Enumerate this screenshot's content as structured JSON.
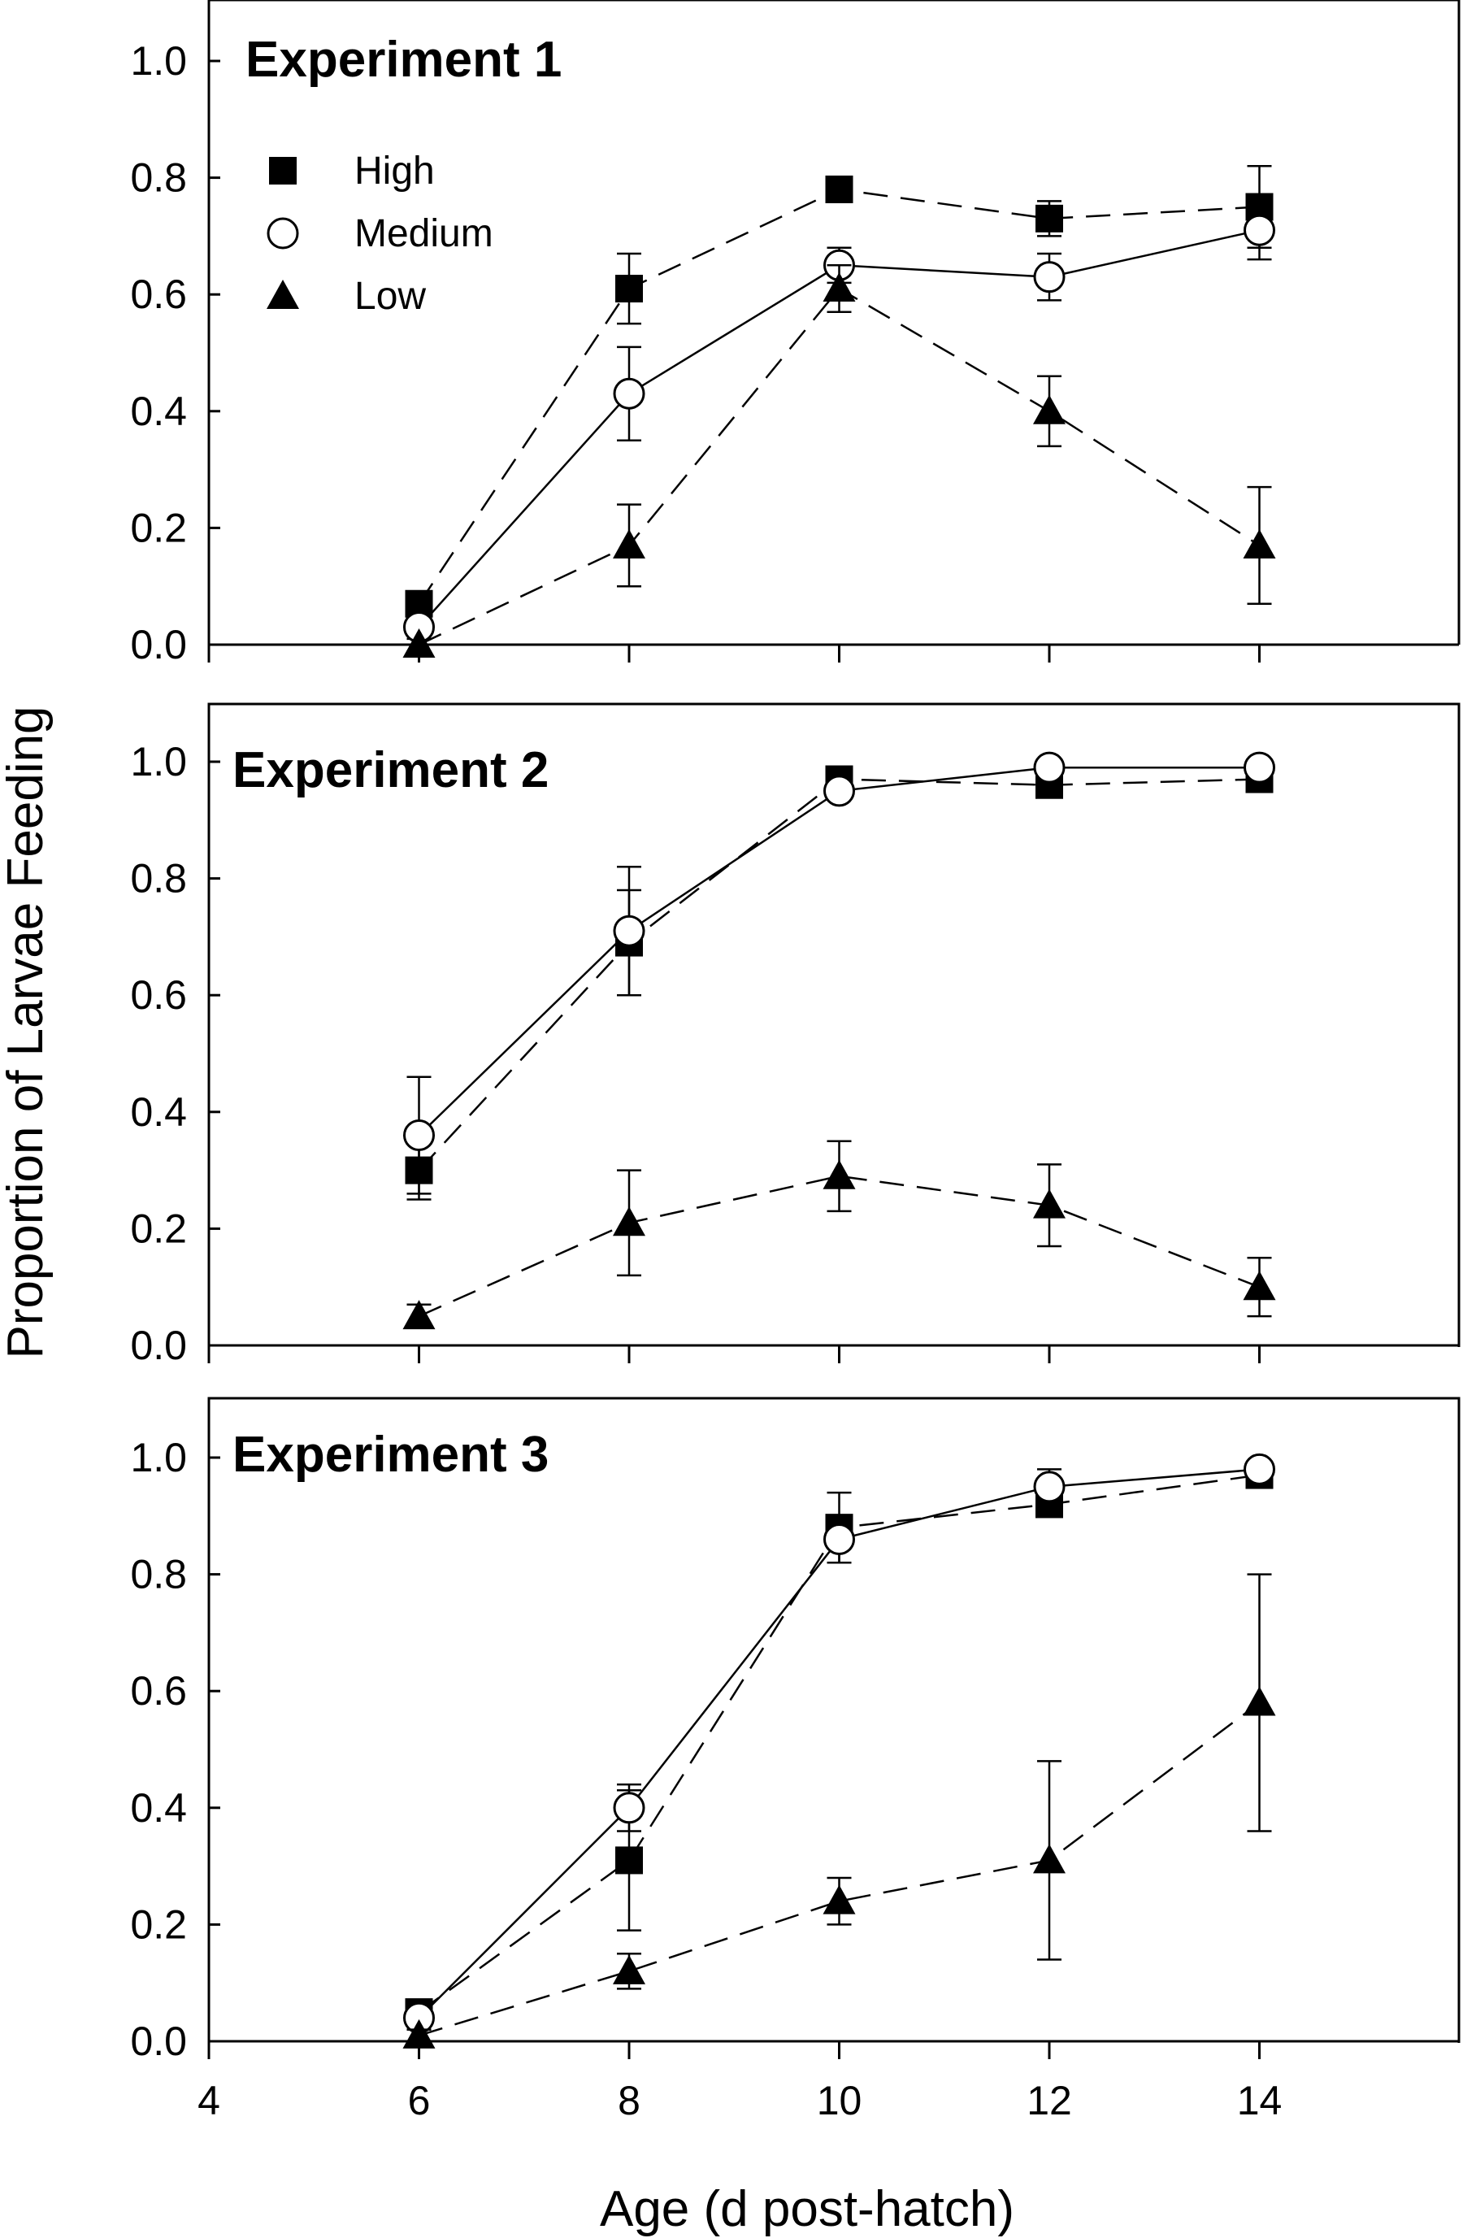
{
  "figure": {
    "ylabel": "Proportion of Larvae Feeding",
    "xlabel": "Age (d post-hatch)"
  },
  "legend": [
    {
      "name": "High",
      "marker": "square-filled"
    },
    {
      "name": "Medium",
      "marker": "circle-open"
    },
    {
      "name": "Low",
      "marker": "triangle-filled"
    }
  ],
  "chart_data": [
    {
      "type": "line",
      "title": "Experiment 1",
      "x": [
        6,
        8,
        10,
        12,
        14
      ],
      "xlim": [
        4,
        16
      ],
      "ylim": [
        0,
        1.1
      ],
      "yticks": [
        "0.0",
        "0.2",
        "0.4",
        "0.6",
        "0.8",
        "1.0"
      ],
      "xticks": [],
      "legend": "top-left",
      "grid": false,
      "series": [
        {
          "name": "High",
          "marker": "square-filled",
          "line": "dashed",
          "values": [
            0.07,
            0.61,
            0.78,
            0.73,
            0.75
          ],
          "errors": [
            0.02,
            0.06,
            0.01,
            0.03,
            0.07
          ]
        },
        {
          "name": "Medium",
          "marker": "circle-open",
          "line": "solid",
          "values": [
            0.03,
            0.43,
            0.65,
            0.63,
            0.71
          ],
          "errors": [
            0.02,
            0.08,
            0.03,
            0.04,
            0.05
          ]
        },
        {
          "name": "Low",
          "marker": "triangle-filled",
          "line": "dashed",
          "values": [
            0.0,
            0.17,
            0.61,
            0.4,
            0.17
          ],
          "errors": [
            0.0,
            0.07,
            0.04,
            0.06,
            0.1
          ]
        }
      ]
    },
    {
      "type": "line",
      "title": "Experiment 2",
      "x": [
        6,
        8,
        10,
        12,
        14
      ],
      "xlim": [
        4,
        16
      ],
      "ylim": [
        0,
        1.1
      ],
      "yticks": [
        "0.0",
        "0.2",
        "0.4",
        "0.6",
        "0.8",
        "1.0"
      ],
      "xticks": [],
      "grid": false,
      "series": [
        {
          "name": "High",
          "marker": "square-filled",
          "line": "dashed",
          "values": [
            0.3,
            0.69,
            0.97,
            0.96,
            0.97
          ],
          "errors": [
            0.05,
            0.09,
            0.01,
            0.01,
            0.01
          ]
        },
        {
          "name": "Medium",
          "marker": "circle-open",
          "line": "solid",
          "values": [
            0.36,
            0.71,
            0.95,
            0.99,
            0.99
          ],
          "errors": [
            0.1,
            0.11,
            0.01,
            0.01,
            0.01
          ]
        },
        {
          "name": "Low",
          "marker": "triangle-filled",
          "line": "dashed",
          "values": [
            0.05,
            0.21,
            0.29,
            0.24,
            0.1
          ],
          "errors": [
            0.02,
            0.09,
            0.06,
            0.07,
            0.05
          ]
        }
      ]
    },
    {
      "type": "line",
      "title": "Experiment 3",
      "x": [
        6,
        8,
        10,
        12,
        14
      ],
      "xlim": [
        4,
        16
      ],
      "ylim": [
        0,
        1.1
      ],
      "yticks": [
        "0.0",
        "0.2",
        "0.4",
        "0.6",
        "0.8",
        "1.0"
      ],
      "xticks": [
        "4",
        "6",
        "8",
        "10",
        "12",
        "14"
      ],
      "grid": false,
      "series": [
        {
          "name": "High",
          "marker": "square-filled",
          "line": "dashed",
          "values": [
            0.05,
            0.31,
            0.88,
            0.92,
            0.97
          ],
          "errors": [
            0.02,
            0.12,
            0.06,
            0.02,
            0.01
          ]
        },
        {
          "name": "Medium",
          "marker": "circle-open",
          "line": "solid",
          "values": [
            0.04,
            0.4,
            0.86,
            0.95,
            0.98
          ],
          "errors": [
            0.02,
            0.04,
            0.04,
            0.03,
            0.01
          ]
        },
        {
          "name": "Low",
          "marker": "triangle-filled",
          "line": "dashed",
          "values": [
            0.01,
            0.12,
            0.24,
            0.31,
            0.58
          ],
          "errors": [
            0.01,
            0.03,
            0.04,
            0.17,
            0.22
          ]
        }
      ]
    }
  ]
}
